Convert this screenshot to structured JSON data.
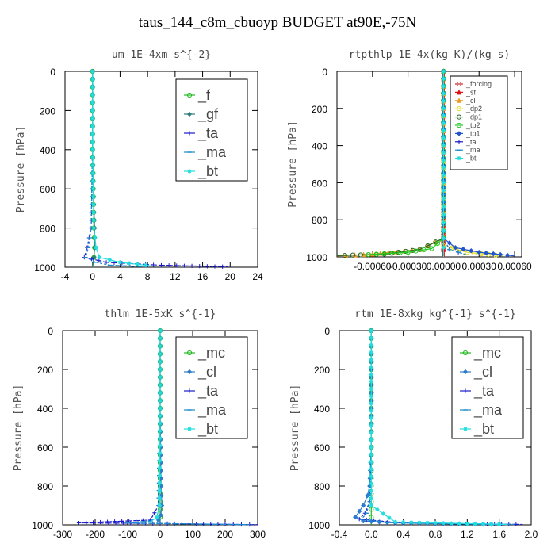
{
  "title": "taus_144_c8m_cbuoyp  BUDGET at90E,-75N",
  "chart_data": [
    {
      "type": "line",
      "title": "um  1E-4xm s^{-2}",
      "ylabel": "Pressure [hPa]",
      "xlim": [
        -4,
        24
      ],
      "ylim": [
        1000,
        0
      ],
      "xticks": [
        "-4",
        "0",
        "4",
        "8",
        "12",
        "16",
        "20",
        "24"
      ],
      "xtick_values": [
        -4,
        0,
        4,
        8,
        12,
        16,
        20,
        24
      ],
      "yticks": [
        "0",
        "200",
        "400",
        "600",
        "800",
        "1000"
      ],
      "ytick_values": [
        0,
        200,
        400,
        600,
        800,
        1000
      ],
      "legend_size": "big",
      "series": [
        {
          "name": "_f",
          "color": "#22bb22",
          "marker": "circle",
          "x": [
            0,
            0,
            0,
            0.1,
            0.2,
            0.3,
            0.2,
            0
          ],
          "y": [
            0,
            200,
            400,
            600,
            800,
            900,
            950,
            1000
          ]
        },
        {
          "name": "_gf",
          "color": "#2e7d7d",
          "marker": "diamond",
          "x": [
            0,
            0,
            0,
            0.1,
            0.3,
            0.3,
            0.2,
            0
          ],
          "y": [
            0,
            200,
            400,
            600,
            800,
            900,
            950,
            1000
          ]
        },
        {
          "name": "_ta",
          "color": "#1a1acc",
          "marker": "plus",
          "x": [
            0,
            0,
            0,
            -0.2,
            -0.8,
            -1.2,
            2,
            10,
            20
          ],
          "y": [
            0,
            200,
            400,
            800,
            900,
            950,
            975,
            990,
            998
          ]
        },
        {
          "name": "_ma",
          "color": "#1a8ccc",
          "marker": "dash",
          "x": [
            0,
            0,
            0,
            -0.2,
            -0.6,
            -1.0,
            0.5,
            2.5,
            8
          ],
          "y": [
            0,
            200,
            400,
            800,
            900,
            950,
            975,
            990,
            998
          ]
        },
        {
          "name": "_bt",
          "color": "#22dddd",
          "marker": "star",
          "x": [
            0,
            0,
            0,
            0.2,
            0.5,
            1,
            4,
            9
          ],
          "y": [
            0,
            200,
            400,
            800,
            900,
            950,
            975,
            995
          ]
        }
      ]
    },
    {
      "type": "line",
      "title": "rtpthlp  1E-4x(kg K)/(kg s)",
      "ylabel": "Pressure [hPa]",
      "xlim": [
        -0.0009,
        0.00066
      ],
      "ylim": [
        1000,
        0
      ],
      "xticks": [
        "-0.00060",
        "-0.00030",
        "0.00000",
        "0.00030",
        "0.00060"
      ],
      "xtick_values": [
        -0.0006,
        -0.0003,
        0,
        0.0003,
        0.0006
      ],
      "yticks": [
        "0",
        "200",
        "400",
        "600",
        "800",
        "1000"
      ],
      "ytick_values": [
        0,
        200,
        400,
        600,
        800,
        1000
      ],
      "legend_size": "small",
      "series": [
        {
          "name": "_forcing",
          "color": "#cc2222",
          "marker": "circle",
          "x": [
            0,
            0,
            0,
            0,
            0,
            0
          ],
          "y": [
            0,
            200,
            400,
            600,
            800,
            1000
          ]
        },
        {
          "name": "_sf",
          "color": "#dd1111",
          "marker": "triangle",
          "x": [
            0,
            0,
            0,
            0,
            0,
            0
          ],
          "y": [
            0,
            200,
            400,
            600,
            800,
            1000
          ]
        },
        {
          "name": "_cl",
          "color": "#ee9922",
          "marker": "triangle",
          "x": [
            0,
            0,
            0,
            -0.0002,
            -0.0006,
            -0.0009
          ],
          "y": [
            0,
            600,
            900,
            960,
            985,
            995
          ]
        },
        {
          "name": "_dp2",
          "color": "#dddd22",
          "marker": "circle",
          "x": [
            0,
            0,
            0,
            0.0002,
            0.0005
          ],
          "y": [
            0,
            600,
            940,
            975,
            995
          ]
        },
        {
          "name": "_dp1",
          "color": "#226622",
          "marker": "circle",
          "x": [
            0,
            0,
            -0.0002,
            -0.0005,
            -0.0009
          ],
          "y": [
            0,
            900,
            960,
            985,
            993
          ]
        },
        {
          "name": "_tp2",
          "color": "#22cc22",
          "marker": "circle",
          "x": [
            0,
            0,
            -0.0001,
            -0.0003,
            -0.0007
          ],
          "y": [
            0,
            900,
            955,
            975,
            990
          ]
        },
        {
          "name": "_tp1",
          "color": "#2255cc",
          "marker": "diamond",
          "x": [
            0,
            0,
            0.0001,
            0.0003,
            0.0006
          ],
          "y": [
            0,
            900,
            950,
            975,
            995
          ]
        },
        {
          "name": "_ta",
          "color": "#1a1acc",
          "marker": "plus",
          "x": [
            0,
            0,
            5e-05,
            0.0002
          ],
          "y": [
            0,
            900,
            960,
            990
          ]
        },
        {
          "name": "_ma",
          "color": "#1a8ccc",
          "marker": "dash",
          "x": [
            0,
            0,
            5e-05,
            0.0002
          ],
          "y": [
            0,
            900,
            960,
            990
          ]
        },
        {
          "name": "_bt",
          "color": "#22dddd",
          "marker": "star",
          "x": [
            0,
            0,
            0,
            0
          ],
          "y": [
            0,
            600,
            900,
            1000
          ]
        }
      ]
    },
    {
      "type": "line",
      "title": "thlm  1E-5xK s^{-1}",
      "ylabel": "Pressure [hPa]",
      "xlim": [
        -300,
        300
      ],
      "ylim": [
        1000,
        0
      ],
      "xticks": [
        "-300",
        "-200",
        "-100",
        "0",
        "100",
        "200",
        "300"
      ],
      "xtick_values": [
        -300,
        -200,
        -100,
        0,
        100,
        200,
        300
      ],
      "yticks": [
        "0",
        "200",
        "400",
        "600",
        "800",
        "1000"
      ],
      "ytick_values": [
        0,
        200,
        400,
        600,
        800,
        1000
      ],
      "legend_size": "big",
      "series": [
        {
          "name": "_mc",
          "color": "#22bb22",
          "marker": "circle",
          "x": [
            0,
            0,
            0,
            0,
            0,
            0
          ],
          "y": [
            0,
            200,
            400,
            600,
            800,
            1000
          ]
        },
        {
          "name": "_cl",
          "color": "#2e7dcc",
          "marker": "diamond",
          "x": [
            0,
            0,
            0,
            3,
            5,
            2,
            -5,
            -10
          ],
          "y": [
            0,
            200,
            400,
            800,
            900,
            950,
            975,
            990
          ]
        },
        {
          "name": "_ta",
          "color": "#1a1acc",
          "marker": "plus",
          "x": [
            0,
            0,
            0,
            -5,
            -30,
            -250,
            0,
            200,
            300
          ],
          "y": [
            0,
            200,
            400,
            900,
            975,
            990,
            993,
            997,
            999
          ]
        },
        {
          "name": "_ma",
          "color": "#1a8ccc",
          "marker": "dash",
          "x": [
            0,
            0,
            0,
            -3,
            -10,
            -30,
            -100,
            0,
            100,
            280
          ],
          "y": [
            0,
            200,
            400,
            900,
            960,
            980,
            990,
            993,
            996,
            999
          ]
        },
        {
          "name": "_bt",
          "color": "#22dddd",
          "marker": "star",
          "x": [
            0,
            0,
            0,
            -2,
            -10,
            -30
          ],
          "y": [
            0,
            200,
            400,
            900,
            960,
            985
          ]
        }
      ]
    },
    {
      "type": "line",
      "title": "rtm  1E-8xkg kg^{-1} s^{-1}",
      "ylabel": "Pressure [hPa]",
      "xlim": [
        -0.4,
        2.0
      ],
      "ylim": [
        1000,
        0
      ],
      "xticks": [
        "-0.4",
        "0.0",
        "0.4",
        "0.8",
        "1.2",
        "1.6",
        "2.0"
      ],
      "xtick_values": [
        -0.4,
        0,
        0.4,
        0.8,
        1.2,
        1.6,
        2.0
      ],
      "yticks": [
        "0",
        "200",
        "400",
        "600",
        "800",
        "1000"
      ],
      "ytick_values": [
        0,
        200,
        400,
        600,
        800,
        1000
      ],
      "legend_size": "big",
      "series": [
        {
          "name": "_mc",
          "color": "#22bb22",
          "marker": "circle",
          "x": [
            0,
            0,
            0,
            0,
            0,
            0
          ],
          "y": [
            0,
            200,
            400,
            600,
            800,
            1000
          ]
        },
        {
          "name": "_cl",
          "color": "#2e7dcc",
          "marker": "diamond",
          "x": [
            0,
            0,
            0,
            -0.02,
            -0.05,
            -0.1,
            -0.15,
            -0.2,
            -0.1,
            0.3,
            1.0,
            1.7
          ],
          "y": [
            0,
            200,
            600,
            800,
            850,
            900,
            930,
            960,
            980,
            990,
            995,
            998
          ]
        },
        {
          "name": "_ta",
          "color": "#1a1acc",
          "marker": "plus",
          "x": [
            0,
            0,
            -0.02,
            -0.08,
            -0.15,
            0.3,
            1.0,
            1.9
          ],
          "y": [
            0,
            600,
            880,
            940,
            970,
            988,
            994,
            998
          ]
        },
        {
          "name": "_ma",
          "color": "#1a8ccc",
          "marker": "dash",
          "x": [
            0,
            0,
            -0.02,
            -0.06,
            -0.12,
            0.2,
            0.9,
            1.8
          ],
          "y": [
            0,
            600,
            880,
            940,
            970,
            988,
            994,
            998
          ]
        },
        {
          "name": "_bt",
          "color": "#22dddd",
          "marker": "star",
          "x": [
            0,
            0,
            0,
            0.3,
            1.0,
            1.7
          ],
          "y": [
            0,
            600,
            900,
            985,
            992,
            998
          ]
        }
      ]
    }
  ]
}
